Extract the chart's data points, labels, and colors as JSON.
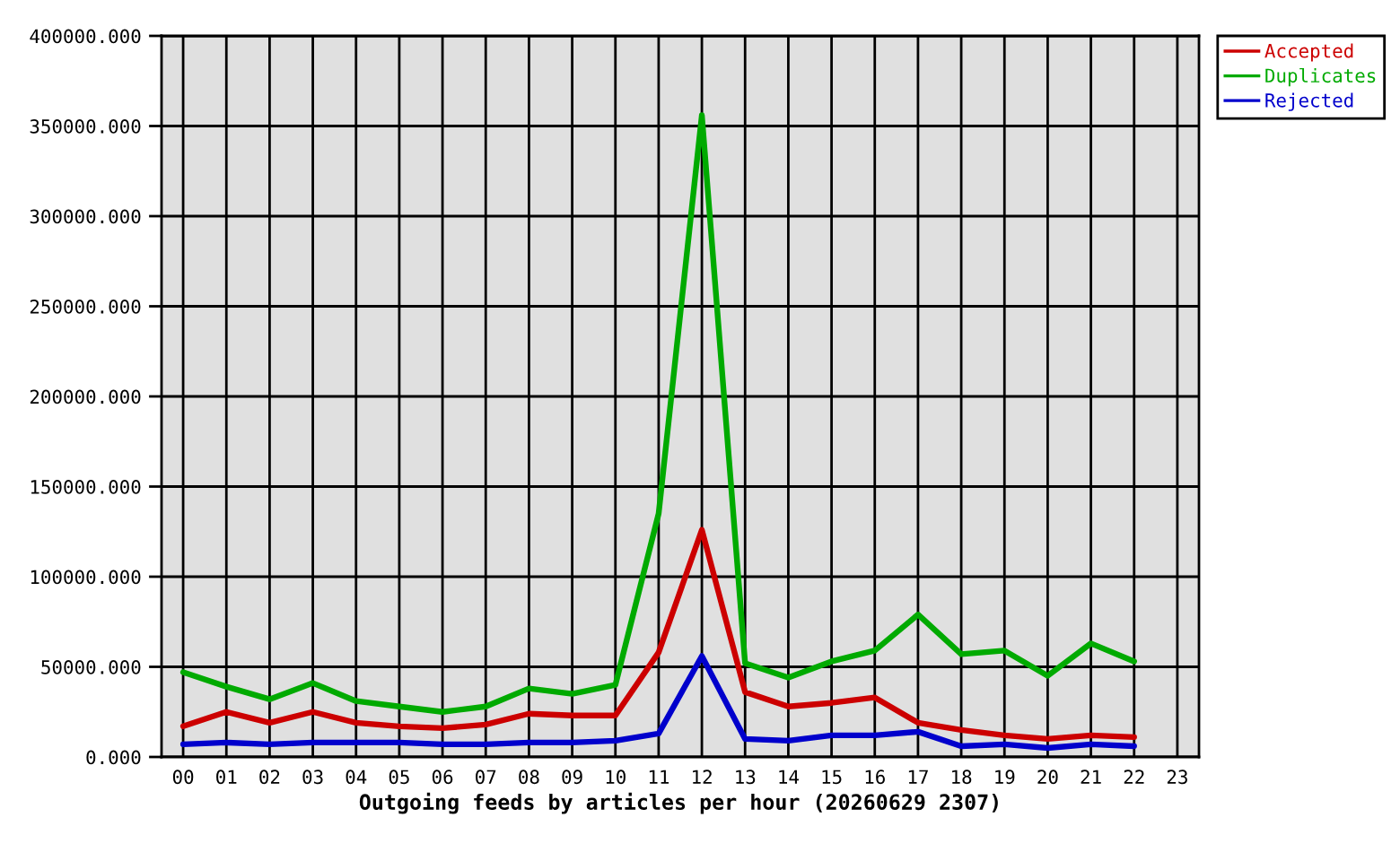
{
  "chart_data": {
    "type": "line",
    "xlabel": "Outgoing feeds by articles per hour (20260629 2307)",
    "categories": [
      "00",
      "01",
      "02",
      "03",
      "04",
      "05",
      "06",
      "07",
      "08",
      "09",
      "10",
      "11",
      "12",
      "13",
      "14",
      "15",
      "16",
      "17",
      "18",
      "19",
      "20",
      "21",
      "22",
      "23"
    ],
    "series": [
      {
        "name": "Accepted",
        "color": "#cc0000",
        "values": [
          17000,
          25000,
          19000,
          25000,
          19000,
          17000,
          16000,
          18000,
          24000,
          23000,
          23000,
          58000,
          126000,
          36000,
          28000,
          30000,
          33000,
          19000,
          15000,
          12000,
          10000,
          12000,
          11000,
          null
        ]
      },
      {
        "name": "Duplicates",
        "color": "#00aa00",
        "values": [
          47000,
          39000,
          32000,
          41000,
          31000,
          28000,
          25000,
          28000,
          38000,
          35000,
          40000,
          135000,
          356000,
          52000,
          44000,
          53000,
          59000,
          79000,
          57000,
          59000,
          45000,
          63000,
          53000,
          null
        ]
      },
      {
        "name": "Rejected",
        "color": "#0000cc",
        "values": [
          7000,
          8000,
          7000,
          8000,
          8000,
          8000,
          7000,
          7000,
          8000,
          8000,
          9000,
          13000,
          56000,
          10000,
          9000,
          12000,
          12000,
          14000,
          6000,
          7000,
          5000,
          7000,
          6000,
          null
        ]
      }
    ],
    "ylim": [
      0,
      400000
    ],
    "yticks": [
      {
        "value": 0,
        "label": "0.000"
      },
      {
        "value": 50000,
        "label": "50000.000"
      },
      {
        "value": 100000,
        "label": "100000.000"
      },
      {
        "value": 150000,
        "label": "150000.000"
      },
      {
        "value": 200000,
        "label": "200000.000"
      },
      {
        "value": 250000,
        "label": "250000.000"
      },
      {
        "value": 300000,
        "label": "300000.000"
      },
      {
        "value": 350000,
        "label": "350000.000"
      },
      {
        "value": 400000,
        "label": "400000.000"
      }
    ],
    "grid": true,
    "legend": "top right",
    "line_style": "solid"
  }
}
